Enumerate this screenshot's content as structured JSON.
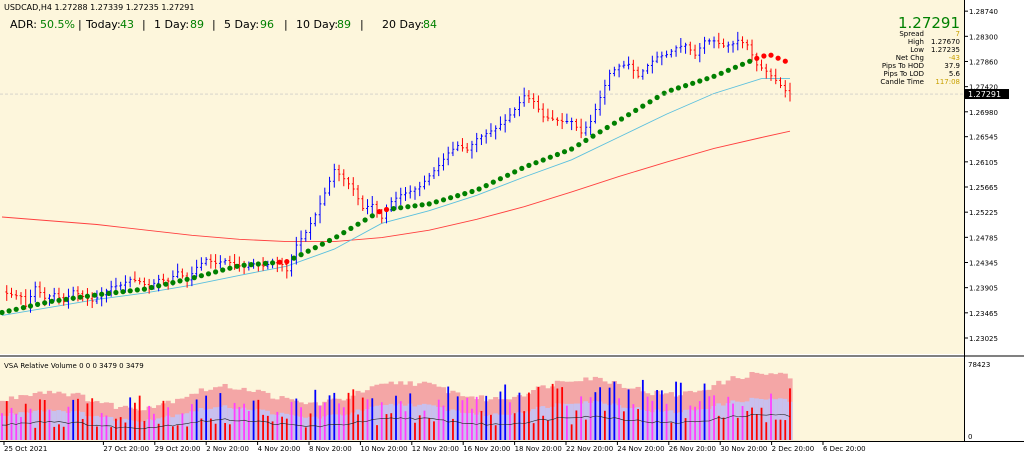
{
  "header": {
    "symbol_line": "USDCAD,H4  1.27288 1.27339 1.27235 1.27291",
    "adr_label": "ADR:",
    "adr_value": "50.5%",
    "today_label": "Today:",
    "today_value": "43",
    "day1_label": "1 Day:",
    "day1_value": "89",
    "day5_label": "5 Day:",
    "day5_value": "96",
    "day10_label": "10 Day:",
    "day10_value": "89",
    "day20_label": "20 Day:",
    "day20_value": "84"
  },
  "info_panel": {
    "price": "1.27291",
    "spread_label": "Spread",
    "spread_value": "7",
    "high_label": "High",
    "high_value": "1.27670",
    "low_label": "Low",
    "low_value": "1.27235",
    "netchg_label": "Net Chg",
    "netchg_value": "-43",
    "hod_label": "Pips To HOD",
    "hod_value": "37.9",
    "lod_label": "Pips To LOD",
    "lod_value": "5.6",
    "candle_label": "Candle Time",
    "candle_value": "117:08"
  },
  "volume_panel": {
    "title": "VSA Relative Volume 0 0 0 3479 0 3479"
  },
  "colors": {
    "background": "#fdf6dc",
    "bull_candle": "#0000ff",
    "bear_candle": "#ff0000",
    "trend_up": "#008000",
    "trend_down": "#ff0000",
    "ma_fast": "#5bc0de",
    "ma_slow": "#ff4040",
    "text_green": "#008000"
  },
  "chart_data": {
    "type": "candlestick",
    "symbol": "USDCAD",
    "timeframe": "H4",
    "x_tick_labels": [
      "25 Oct 2021",
      "27 Oct 20:00",
      "29 Oct 20:00",
      "2 Nov 20:00",
      "4 Nov 20:00",
      "8 Nov 20:00",
      "10 Nov 20:00",
      "12 Nov 20:00",
      "16 Nov 20:00",
      "18 Nov 20:00",
      "22 Nov 20:00",
      "24 Nov 20:00",
      "26 Nov 20:00",
      "30 Nov 20:00",
      "2 Dec 20:00",
      "6 Dec 20:00"
    ],
    "y_tick_labels": [
      "1.28740",
      "1.28300",
      "1.27860",
      "1.27420",
      "1.26980",
      "1.26545",
      "1.26105",
      "1.25665",
      "1.25225",
      "1.24785",
      "1.24345",
      "1.23905",
      "1.23465",
      "1.23025"
    ],
    "ylim": [
      1.2278,
      1.2883
    ],
    "current_price": 1.27291,
    "price_path": [
      [
        0,
        1.2383
      ],
      [
        2,
        1.2378
      ],
      [
        4,
        1.2375
      ],
      [
        5,
        1.2358
      ],
      [
        7,
        1.2392
      ],
      [
        9,
        1.2372
      ],
      [
        11,
        1.238
      ],
      [
        13,
        1.2366
      ],
      [
        15,
        1.2385
      ],
      [
        17,
        1.2375
      ],
      [
        19,
        1.2367
      ],
      [
        21,
        1.2378
      ],
      [
        23,
        1.2392
      ],
      [
        25,
        1.2395
      ],
      [
        27,
        1.2405
      ],
      [
        29,
        1.2401
      ],
      [
        31,
        1.2391
      ],
      [
        33,
        1.2405
      ],
      [
        35,
        1.2402
      ],
      [
        37,
        1.2418
      ],
      [
        39,
        1.2404
      ],
      [
        41,
        1.2426
      ],
      [
        43,
        1.244
      ],
      [
        45,
        1.2433
      ],
      [
        47,
        1.2438
      ],
      [
        49,
        1.2431
      ],
      [
        51,
        1.2426
      ],
      [
        53,
        1.2432
      ],
      [
        55,
        1.2428
      ],
      [
        57,
        1.2434
      ],
      [
        59,
        1.2431
      ],
      [
        60,
        1.242
      ],
      [
        62,
        1.2465
      ],
      [
        64,
        1.2487
      ],
      [
        66,
        1.2518
      ],
      [
        68,
        1.2556
      ],
      [
        70,
        1.2597
      ],
      [
        72,
        1.2581
      ],
      [
        74,
        1.2563
      ],
      [
        76,
        1.2529
      ],
      [
        78,
        1.2536
      ],
      [
        80,
        1.2512
      ],
      [
        82,
        1.2541
      ],
      [
        84,
        1.2553
      ],
      [
        86,
        1.2559
      ],
      [
        88,
        1.2567
      ],
      [
        90,
        1.2586
      ],
      [
        92,
        1.2604
      ],
      [
        94,
        1.2626
      ],
      [
        96,
        1.2639
      ],
      [
        98,
        1.2631
      ],
      [
        100,
        1.2651
      ],
      [
        102,
        1.266
      ],
      [
        104,
        1.2669
      ],
      [
        106,
        1.2683
      ],
      [
        108,
        1.2702
      ],
      [
        110,
        1.2726
      ],
      [
        112,
        1.2716
      ],
      [
        114,
        1.2689
      ],
      [
        116,
        1.2685
      ],
      [
        118,
        1.2681
      ],
      [
        120,
        1.2681
      ],
      [
        122,
        1.2661
      ],
      [
        124,
        1.2681
      ],
      [
        126,
        1.2723
      ],
      [
        128,
        1.2765
      ],
      [
        130,
        1.2778
      ],
      [
        132,
        1.2781
      ],
      [
        134,
        1.276
      ],
      [
        136,
        1.2779
      ],
      [
        138,
        1.2794
      ],
      [
        140,
        1.2798
      ],
      [
        142,
        1.281
      ],
      [
        144,
        1.2815
      ],
      [
        146,
        1.2797
      ],
      [
        148,
        1.2822
      ],
      [
        150,
        1.2822
      ],
      [
        152,
        1.2813
      ],
      [
        154,
        1.2817
      ],
      [
        155,
        1.2823
      ],
      [
        157,
        1.2815
      ],
      [
        159,
        1.278
      ],
      [
        161,
        1.2769
      ],
      [
        163,
        1.2753
      ],
      [
        165,
        1.2735
      ],
      [
        166,
        1.2729
      ]
    ],
    "trend_line": [
      [
        0,
        1.2347
      ],
      [
        10,
        1.2366
      ],
      [
        20,
        1.2378
      ],
      [
        30,
        1.2388
      ],
      [
        40,
        1.2407
      ],
      [
        50,
        1.2429
      ],
      [
        60,
        1.2436
      ],
      [
        70,
        1.2477
      ],
      [
        80,
        1.2526
      ],
      [
        90,
        1.2537
      ],
      [
        100,
        1.2561
      ],
      [
        110,
        1.2601
      ],
      [
        120,
        1.2633
      ],
      [
        130,
        1.2683
      ],
      [
        140,
        1.2733
      ],
      [
        150,
        1.276
      ],
      [
        160,
        1.2795
      ],
      [
        162,
        1.2797
      ],
      [
        166,
        1.2783
      ]
    ],
    "ma_fast": [
      [
        0,
        1.2342
      ],
      [
        10,
        1.2356
      ],
      [
        20,
        1.237
      ],
      [
        30,
        1.2381
      ],
      [
        40,
        1.2395
      ],
      [
        50,
        1.2412
      ],
      [
        60,
        1.2428
      ],
      [
        70,
        1.2458
      ],
      [
        80,
        1.2503
      ],
      [
        90,
        1.2525
      ],
      [
        100,
        1.2552
      ],
      [
        110,
        1.2584
      ],
      [
        120,
        1.2614
      ],
      [
        130,
        1.2654
      ],
      [
        140,
        1.2694
      ],
      [
        150,
        1.273
      ],
      [
        160,
        1.2756
      ],
      [
        166,
        1.2756
      ]
    ],
    "ma_slow": [
      [
        0,
        1.2514
      ],
      [
        20,
        1.2501
      ],
      [
        40,
        1.2482
      ],
      [
        50,
        1.2475
      ],
      [
        60,
        1.2471
      ],
      [
        70,
        1.2471
      ],
      [
        80,
        1.2478
      ],
      [
        90,
        1.2491
      ],
      [
        100,
        1.251
      ],
      [
        110,
        1.2532
      ],
      [
        120,
        1.2558
      ],
      [
        130,
        1.2585
      ],
      [
        140,
        1.261
      ],
      [
        150,
        1.2634
      ],
      [
        160,
        1.2653
      ],
      [
        166,
        1.2664
      ]
    ],
    "volume_ylim": [
      0,
      78423
    ],
    "volume_y_tick_labels": [
      "78423",
      "0"
    ]
  }
}
